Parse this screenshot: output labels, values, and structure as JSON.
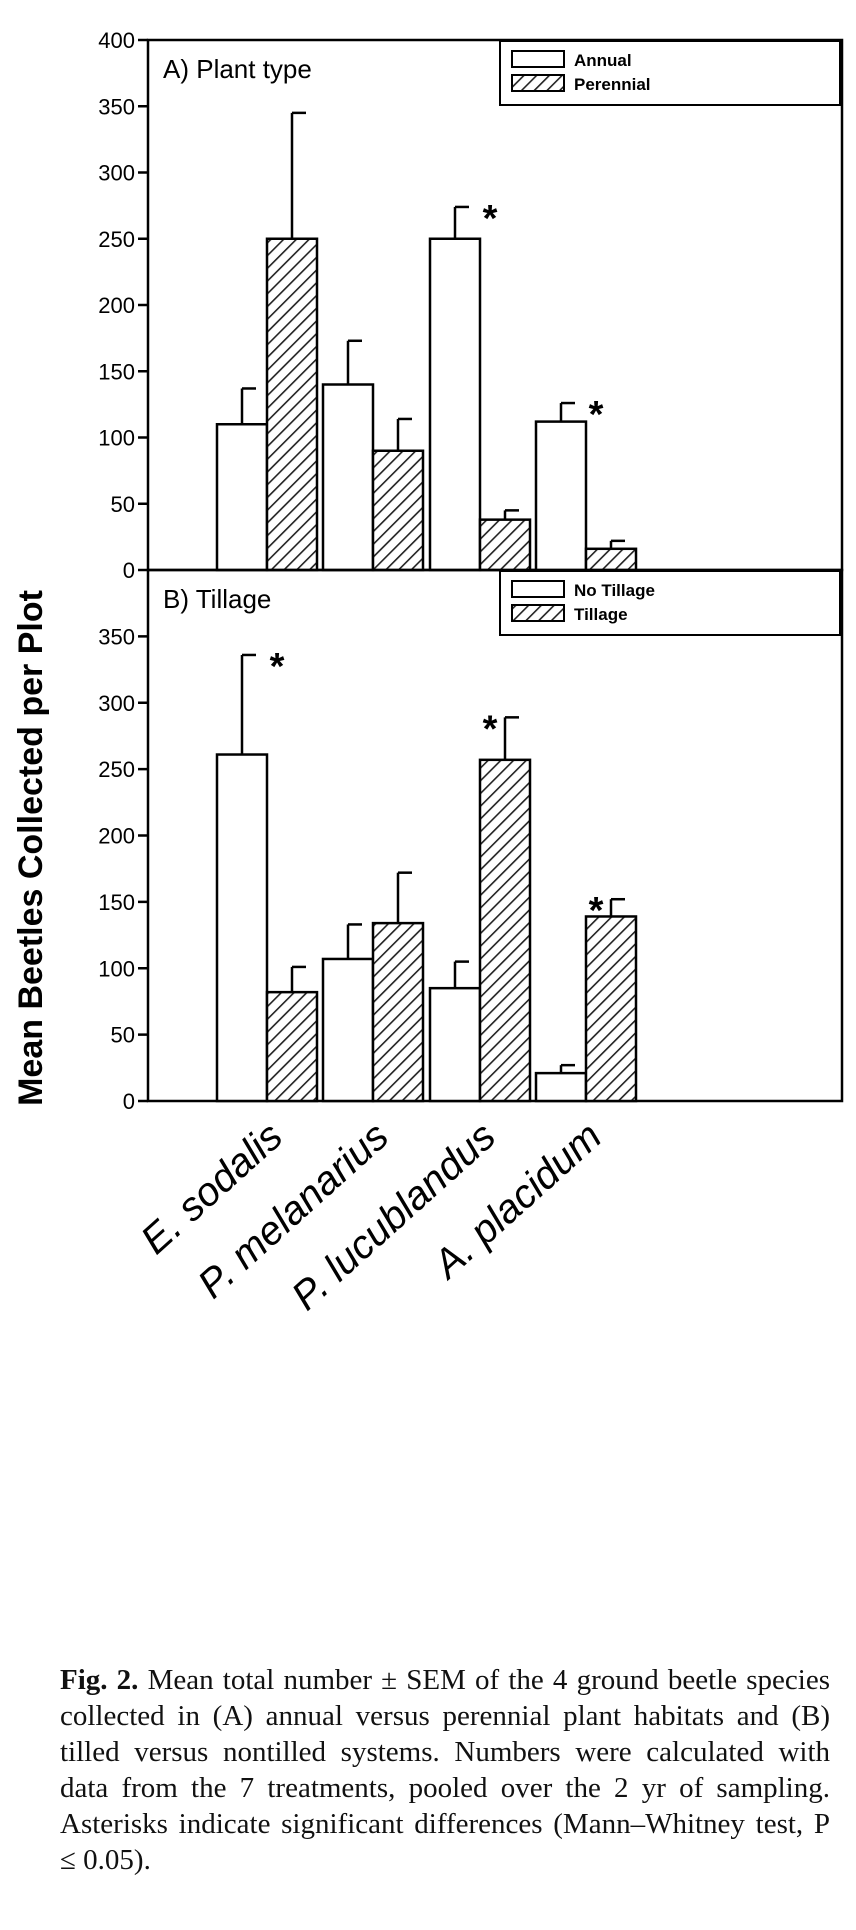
{
  "chart_data": [
    {
      "type": "bar",
      "panel_label": "A) Plant type",
      "categories": [
        "E. sodalis",
        "P. melanarius",
        "P. lucublandus",
        "A. placidum"
      ],
      "series": [
        {
          "name": "Annual",
          "values": [
            110,
            140,
            250,
            112
          ],
          "sem": [
            27,
            33,
            24,
            14
          ]
        },
        {
          "name": "Perennial",
          "values": [
            250,
            90,
            38,
            16
          ],
          "sem": [
            95,
            24,
            7,
            6
          ]
        }
      ],
      "significant_categories": [
        "P. lucublandus",
        "A. placidum"
      ],
      "ylim": [
        0,
        400
      ],
      "yticks": [
        "0",
        "50",
        "100",
        "150",
        "200",
        "250",
        "300",
        "350",
        "400"
      ],
      "legend_position": "top-right"
    },
    {
      "type": "bar",
      "panel_label": "B) Tillage",
      "categories": [
        "E. sodalis",
        "P. melanarius",
        "P. lucublandus",
        "A. placidum"
      ],
      "series": [
        {
          "name": "No Tillage",
          "values": [
            261,
            107,
            85,
            21
          ],
          "sem": [
            75,
            26,
            20,
            6
          ]
        },
        {
          "name": "Tillage",
          "values": [
            82,
            134,
            257,
            139
          ],
          "sem": [
            19,
            38,
            32,
            13
          ]
        }
      ],
      "significant_categories": [
        "E. sodalis",
        "P. lucublandus",
        "A. placidum"
      ],
      "ylim": [
        0,
        400
      ],
      "yticks": [
        "0",
        "50",
        "100",
        "150",
        "200",
        "250",
        "300",
        "350"
      ],
      "legend_position": "top-right"
    }
  ],
  "ylabel": "Mean Beetles Collected per Plot",
  "asterisk": "*",
  "caption": {
    "fig_label": "Fig. 2.",
    "text": "Mean total number ± SEM of the 4 ground beetle species collected in (A) annual versus perennial plant habitats and (B) tilled versus nontilled systems. Numbers were calculated with data from the 7 treatments, pooled over the 2 yr of sampling. Asterisks indicate significant differences (Mann–Whitney test, P ≤ 0.05)."
  }
}
